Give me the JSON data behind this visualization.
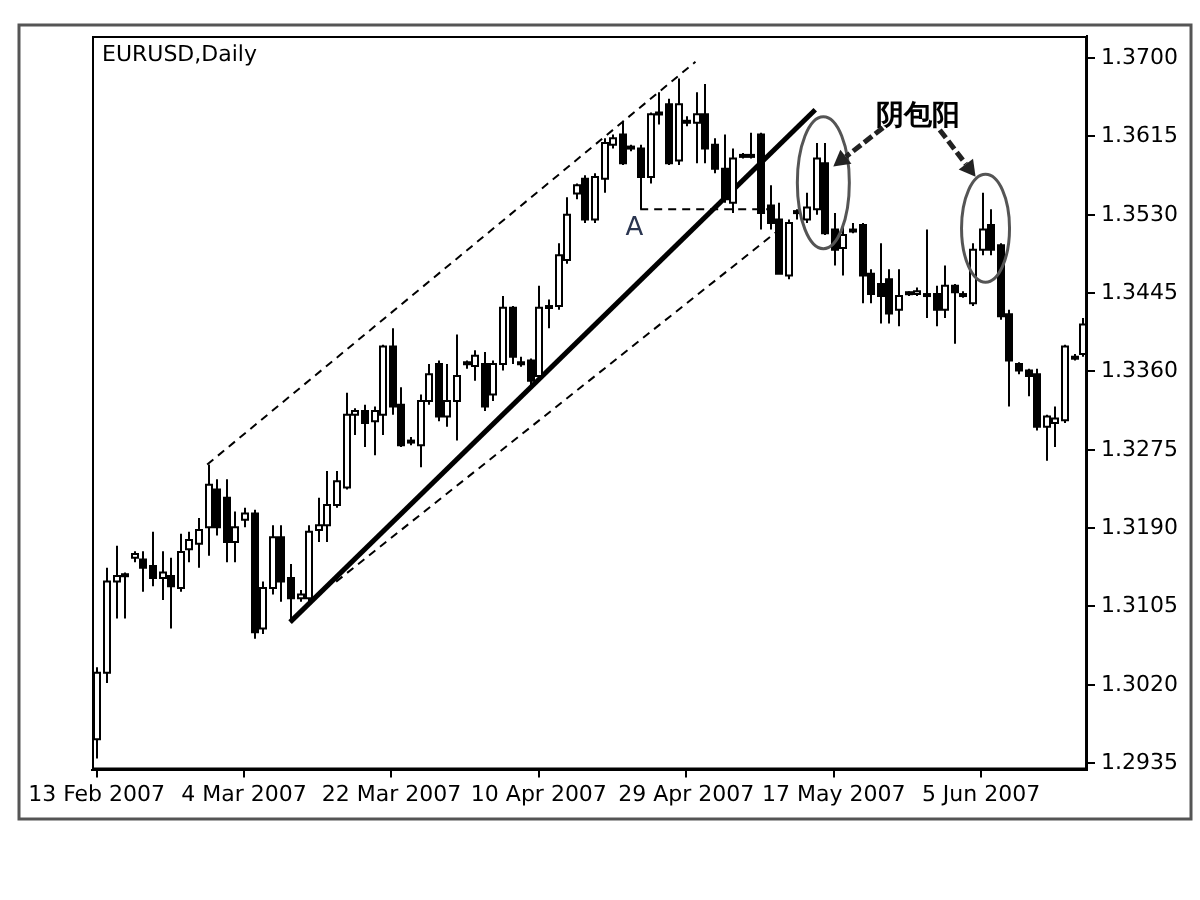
{
  "chart_data": {
    "type": "candlestick",
    "title": "EURUSD,Daily",
    "categories": [
      "13 Feb 2007",
      null,
      null,
      null,
      null,
      null,
      null,
      null,
      null,
      null,
      null,
      null,
      null,
      null,
      null,
      null,
      "4 Mar 2007",
      null,
      null,
      null,
      null,
      null,
      null,
      null,
      null,
      null,
      null,
      null,
      null,
      null,
      null,
      null,
      "22 Mar 2007",
      null,
      null,
      null,
      null,
      null,
      null,
      null,
      null,
      null,
      null,
      null,
      null,
      null,
      null,
      null,
      "10 Apr 2007",
      null,
      null,
      null,
      null,
      null,
      null,
      null,
      null,
      null,
      null,
      null,
      null,
      null,
      null,
      null,
      "29 Apr 2007",
      null,
      null,
      null,
      null,
      null,
      null,
      null,
      null,
      null,
      null,
      null,
      null,
      null,
      null,
      null,
      "17 May 2007",
      null,
      null,
      null,
      null,
      null,
      null,
      null,
      null,
      null,
      null,
      null,
      null,
      null,
      null,
      null,
      "5 Jun 2007",
      null,
      null,
      null,
      null,
      null,
      null,
      null,
      null,
      null,
      null,
      null
    ],
    "ohlc": [
      [
        1.2961,
        1.3039,
        1.294,
        1.3033
      ],
      [
        1.3033,
        1.3147,
        1.3022,
        1.3132
      ],
      [
        1.3132,
        1.3171,
        1.3092,
        1.3138
      ],
      [
        1.3138,
        1.3142,
        1.3092,
        1.314
      ],
      [
        1.3158,
        1.3165,
        1.3153,
        1.3162
      ],
      [
        1.3156,
        1.3165,
        1.3121,
        1.3147
      ],
      [
        1.3149,
        1.3186,
        1.3127,
        1.3136
      ],
      [
        1.3136,
        1.3165,
        1.3112,
        1.3142
      ],
      [
        1.3138,
        1.3158,
        1.3081,
        1.3127
      ],
      [
        1.3125,
        1.3184,
        1.3121,
        1.3164
      ],
      [
        1.3167,
        1.3186,
        1.3153,
        1.3177
      ],
      [
        1.3173,
        1.3201,
        1.3147,
        1.3188
      ],
      [
        1.3191,
        1.3259,
        1.316,
        1.3237
      ],
      [
        1.3232,
        1.3243,
        1.3182,
        1.3191
      ],
      [
        1.3223,
        1.3243,
        1.3153,
        1.3175
      ],
      [
        1.3175,
        1.3208,
        1.3153,
        1.3191
      ],
      [
        1.3199,
        1.3212,
        1.3191,
        1.3206
      ],
      [
        1.3206,
        1.321,
        1.307,
        1.3077
      ],
      [
        1.3081,
        1.3132,
        1.3075,
        1.3125
      ],
      [
        1.3125,
        1.3193,
        1.3118,
        1.318
      ],
      [
        1.318,
        1.3193,
        1.311,
        1.3132
      ],
      [
        1.3136,
        1.3151,
        1.3088,
        1.3114
      ],
      [
        1.3114,
        1.3123,
        1.311,
        1.3118
      ],
      [
        1.3114,
        1.3193,
        1.311,
        1.3186
      ],
      [
        1.3188,
        1.3223,
        1.3175,
        1.3193
      ],
      [
        1.3193,
        1.3252,
        1.3175,
        1.3215
      ],
      [
        1.3215,
        1.3252,
        1.3212,
        1.3241
      ],
      [
        1.3234,
        1.3337,
        1.3232,
        1.3313
      ],
      [
        1.3313,
        1.332,
        1.3291,
        1.3317
      ],
      [
        1.3317,
        1.3324,
        1.3278,
        1.3304
      ],
      [
        1.3306,
        1.3322,
        1.3269,
        1.3317
      ],
      [
        1.3313,
        1.3389,
        1.3291,
        1.3387
      ],
      [
        1.3387,
        1.3407,
        1.3313,
        1.3322
      ],
      [
        1.3324,
        1.3343,
        1.3278,
        1.328
      ],
      [
        1.3283,
        1.3289,
        1.328,
        1.3285
      ],
      [
        1.328,
        1.3335,
        1.3256,
        1.3328
      ],
      [
        1.3328,
        1.3368,
        1.3324,
        1.3357
      ],
      [
        1.3368,
        1.3372,
        1.3306,
        1.3311
      ],
      [
        1.3311,
        1.3368,
        1.33,
        1.3328
      ],
      [
        1.3328,
        1.34,
        1.3285,
        1.3355
      ],
      [
        1.3368,
        1.3372,
        1.3363,
        1.337
      ],
      [
        1.3366,
        1.3383,
        1.335,
        1.3377
      ],
      [
        1.3368,
        1.3381,
        1.3317,
        1.3322
      ],
      [
        1.3335,
        1.3372,
        1.3328,
        1.3368
      ],
      [
        1.3368,
        1.3442,
        1.3361,
        1.3429
      ],
      [
        1.3429,
        1.3431,
        1.3368,
        1.3376
      ],
      [
        1.337,
        1.3376,
        1.3365,
        1.3368
      ],
      [
        1.3372,
        1.3374,
        1.3343,
        1.335
      ],
      [
        1.3355,
        1.3453,
        1.335,
        1.3429
      ],
      [
        1.3429,
        1.3438,
        1.3407,
        1.3431
      ],
      [
        1.3431,
        1.3499,
        1.3427,
        1.3486
      ],
      [
        1.3481,
        1.3549,
        1.3477,
        1.353
      ],
      [
        1.3553,
        1.3564,
        1.3547,
        1.3562
      ],
      [
        1.3569,
        1.3573,
        1.3521,
        1.3525
      ],
      [
        1.3525,
        1.3575,
        1.3521,
        1.3571
      ],
      [
        1.3569,
        1.3613,
        1.3554,
        1.3608
      ],
      [
        1.3606,
        1.3617,
        1.3602,
        1.3613
      ],
      [
        1.3617,
        1.3632,
        1.3584,
        1.3586
      ],
      [
        1.3602,
        1.3606,
        1.3599,
        1.3604
      ],
      [
        1.3602,
        1.3606,
        1.3536,
        1.3571
      ],
      [
        1.3571,
        1.3641,
        1.3564,
        1.3639
      ],
      [
        1.3639,
        1.3663,
        1.3628,
        1.3641
      ],
      [
        1.365,
        1.3656,
        1.3584,
        1.3586
      ],
      [
        1.3589,
        1.3678,
        1.3584,
        1.365
      ],
      [
        1.3632,
        1.3637,
        1.3626,
        1.363
      ],
      [
        1.363,
        1.3663,
        1.3586,
        1.3639
      ],
      [
        1.3639,
        1.3672,
        1.3586,
        1.3602
      ],
      [
        1.3606,
        1.3613,
        1.3575,
        1.358
      ],
      [
        1.358,
        1.3617,
        1.3543,
        1.3547
      ],
      [
        1.3543,
        1.3602,
        1.3532,
        1.3591
      ],
      [
        1.3595,
        1.3597,
        1.3591,
        1.3593
      ],
      [
        1.3593,
        1.3619,
        1.3591,
        1.3595
      ],
      [
        1.3617,
        1.3619,
        1.3514,
        1.3532
      ],
      [
        1.354,
        1.3562,
        1.3514,
        1.3521
      ],
      [
        1.3525,
        1.3543,
        1.3466,
        1.3466
      ],
      [
        1.3464,
        1.3525,
        1.346,
        1.3521
      ],
      [
        1.3532,
        1.3536,
        1.3525,
        1.3534
      ],
      [
        1.3525,
        1.3554,
        1.3521,
        1.3538
      ],
      [
        1.3536,
        1.3608,
        1.353,
        1.3591
      ],
      [
        1.3586,
        1.3608,
        1.3508,
        1.351
      ],
      [
        1.3514,
        1.3532,
        1.3475,
        1.3492
      ],
      [
        1.3494,
        1.3519,
        1.3464,
        1.3508
      ],
      [
        1.3512,
        1.3521,
        1.351,
        1.3514
      ],
      [
        1.3519,
        1.3521,
        1.3434,
        1.3464
      ],
      [
        1.3466,
        1.3471,
        1.3434,
        1.3444
      ],
      [
        1.3455,
        1.3499,
        1.3412,
        1.3442
      ],
      [
        1.346,
        1.3471,
        1.3412,
        1.3423
      ],
      [
        1.3427,
        1.3471,
        1.3409,
        1.3442
      ],
      [
        1.3446,
        1.3447,
        1.3442,
        1.3444
      ],
      [
        1.3444,
        1.3451,
        1.3442,
        1.3447
      ],
      [
        1.3444,
        1.3514,
        1.3418,
        1.3442
      ],
      [
        1.3444,
        1.3453,
        1.3409,
        1.3427
      ],
      [
        1.3427,
        1.3475,
        1.3418,
        1.3453
      ],
      [
        1.3453,
        1.3455,
        1.339,
        1.3446
      ],
      [
        1.3442,
        1.3447,
        1.344,
        1.3444
      ],
      [
        1.3434,
        1.3499,
        1.3431,
        1.3492
      ],
      [
        1.3492,
        1.3554,
        1.3486,
        1.3514
      ],
      [
        1.3519,
        1.3536,
        1.3486,
        1.3492
      ],
      [
        1.3497,
        1.3499,
        1.3416,
        1.342
      ],
      [
        1.3422,
        1.3427,
        1.3322,
        1.3372
      ],
      [
        1.3368,
        1.337,
        1.3357,
        1.3361
      ],
      [
        1.3361,
        1.3363,
        1.3333,
        1.3355
      ],
      [
        1.3357,
        1.3363,
        1.3296,
        1.33
      ],
      [
        1.33,
        1.3313,
        1.3263,
        1.3311
      ],
      [
        1.3304,
        1.3322,
        1.3278,
        1.3309
      ],
      [
        1.3307,
        1.3389,
        1.3304,
        1.3387
      ],
      [
        1.3376,
        1.3379,
        1.3372,
        1.3374
      ],
      [
        1.3379,
        1.3418,
        1.3376,
        1.3411
      ]
    ],
    "series": [
      {
        "type": "line",
        "color": "#000000",
        "line_style": "solid",
        "values": [
          null,
          null,
          null,
          null,
          null,
          null,
          null,
          null,
          null,
          null,
          null,
          null,
          null,
          null,
          null,
          null,
          null,
          null,
          null,
          null,
          null,
          1.3088,
          null,
          null,
          null,
          null,
          null,
          null,
          null,
          null,
          null,
          null,
          null,
          null,
          null,
          null,
          null,
          null,
          null,
          null,
          null,
          null,
          null,
          null,
          null,
          null,
          null,
          null,
          null,
          null,
          null,
          null,
          null,
          null,
          null,
          null,
          null,
          null,
          null,
          null,
          null,
          null,
          null,
          null,
          null,
          null,
          null,
          null,
          null,
          null,
          null,
          null,
          null,
          null,
          null,
          null,
          null,
          null,
          1.3644,
          null,
          null,
          null,
          null,
          null,
          null,
          null,
          null,
          null,
          null,
          null,
          null,
          null,
          null,
          null,
          null,
          null,
          null,
          null,
          null,
          null,
          null,
          null,
          null,
          null,
          null,
          null,
          null,
          null
        ]
      },
      {
        "type": "line",
        "color": "#000000",
        "line_style": "dashed",
        "values": [
          null,
          null,
          null,
          null,
          null,
          null,
          null,
          null,
          null,
          null,
          null,
          null,
          1.3259,
          null,
          null,
          null,
          null,
          null,
          null,
          null,
          null,
          null,
          null,
          null,
          null,
          null,
          null,
          null,
          null,
          null,
          null,
          null,
          null,
          null,
          null,
          null,
          null,
          null,
          null,
          null,
          null,
          null,
          null,
          null,
          null,
          null,
          null,
          null,
          null,
          null,
          null,
          null,
          null,
          null,
          null,
          null,
          null,
          null,
          null,
          null,
          null,
          null,
          null,
          null,
          null,
          1.3696,
          null,
          null,
          null,
          null,
          null,
          null,
          null,
          null,
          null,
          null,
          null,
          null,
          null,
          null,
          null,
          null,
          null,
          null,
          null,
          null,
          null,
          null,
          null,
          null,
          null,
          null,
          null,
          null,
          null,
          null,
          null,
          null,
          null,
          null,
          null,
          null,
          null,
          null,
          null,
          null,
          null,
          null
        ]
      },
      {
        "type": "line",
        "color": "#000000",
        "line_style": "dashed",
        "values": [
          null,
          null,
          null,
          null,
          null,
          null,
          null,
          null,
          null,
          null,
          null,
          null,
          null,
          null,
          null,
          null,
          null,
          null,
          null,
          null,
          null,
          null,
          null,
          null,
          null,
          null,
          1.3132,
          null,
          null,
          null,
          null,
          null,
          null,
          null,
          null,
          null,
          null,
          null,
          null,
          null,
          null,
          null,
          null,
          null,
          null,
          null,
          null,
          null,
          null,
          null,
          null,
          null,
          null,
          null,
          null,
          null,
          null,
          null,
          null,
          null,
          null,
          null,
          null,
          null,
          null,
          null,
          null,
          null,
          null,
          null,
          null,
          null,
          null,
          null,
          null,
          1.3521,
          null,
          null,
          null,
          null,
          null,
          null,
          null,
          null,
          null,
          null,
          null,
          null,
          null,
          null,
          null,
          null,
          null,
          null,
          null,
          null,
          null,
          null,
          null,
          null,
          null,
          null,
          null,
          null,
          null,
          null,
          null,
          null
        ]
      },
      {
        "type": "line",
        "color": "#000000",
        "line_style": "dashed",
        "values": [
          null,
          null,
          null,
          null,
          null,
          null,
          null,
          null,
          null,
          null,
          null,
          null,
          null,
          null,
          null,
          null,
          null,
          null,
          null,
          null,
          null,
          null,
          null,
          null,
          null,
          null,
          null,
          null,
          null,
          null,
          null,
          null,
          null,
          null,
          null,
          null,
          null,
          null,
          null,
          null,
          null,
          null,
          null,
          null,
          null,
          null,
          null,
          null,
          null,
          null,
          null,
          null,
          null,
          null,
          null,
          null,
          null,
          null,
          null,
          1.3536,
          null,
          null,
          null,
          null,
          null,
          null,
          null,
          null,
          null,
          null,
          null,
          null,
          null,
          1.3536,
          null,
          null,
          null,
          null,
          null,
          null,
          null,
          null,
          null,
          null,
          null,
          null,
          null,
          null,
          null,
          null,
          null,
          null,
          null,
          null,
          null,
          null,
          null,
          null,
          null,
          null,
          null,
          null,
          null,
          null,
          null,
          null,
          null,
          null
        ]
      }
    ],
    "ylim": [
      1.2928,
      1.3724
    ],
    "yticks": [
      1.2935,
      {
        "value": 1.302,
        "label": "1.3020"
      },
      1.3105,
      {
        "value": 1.319,
        "label": "1.3190"
      },
      1.3275,
      {
        "value": 1.336,
        "label": "1.3360"
      },
      1.3445,
      {
        "value": 1.353,
        "label": "1.3530"
      },
      1.3615,
      {
        "value": 1.37,
        "label": "1.3700"
      }
    ],
    "annotations": [
      "A",
      "阴包阳"
    ],
    "grid": false,
    "legend": false
  }
}
